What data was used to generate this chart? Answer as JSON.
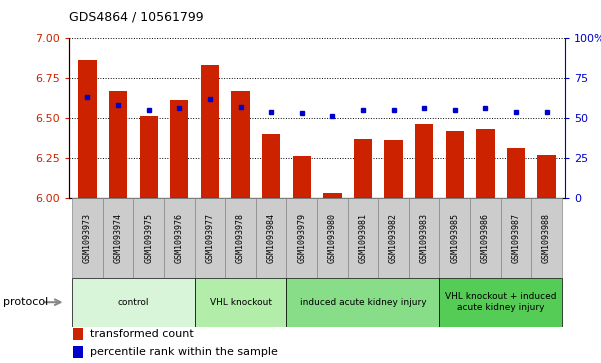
{
  "title": "GDS4864 / 10561799",
  "samples": [
    "GSM1093973",
    "GSM1093974",
    "GSM1093975",
    "GSM1093976",
    "GSM1093977",
    "GSM1093978",
    "GSM1093984",
    "GSM1093979",
    "GSM1093980",
    "GSM1093981",
    "GSM1093982",
    "GSM1093983",
    "GSM1093985",
    "GSM1093986",
    "GSM1093987",
    "GSM1093988"
  ],
  "transformed_count": [
    6.86,
    6.67,
    6.51,
    6.61,
    6.83,
    6.67,
    6.4,
    6.26,
    6.03,
    6.37,
    6.36,
    6.46,
    6.42,
    6.43,
    6.31,
    6.27
  ],
  "percentile_rank": [
    63,
    58,
    55,
    56,
    62,
    57,
    54,
    53,
    51,
    55,
    55,
    56,
    55,
    56,
    54,
    54
  ],
  "ylim_left": [
    6.0,
    7.0
  ],
  "ylim_right": [
    0,
    100
  ],
  "yticks_left": [
    6.0,
    6.25,
    6.5,
    6.75,
    7.0
  ],
  "yticks_right": [
    0,
    25,
    50,
    75,
    100
  ],
  "bar_color": "#cc2200",
  "dot_color": "#0000cc",
  "groups": [
    {
      "label": "control",
      "indices": [
        0,
        1,
        2,
        3
      ],
      "color": "#d9f5d9"
    },
    {
      "label": "VHL knockout",
      "indices": [
        4,
        5,
        6
      ],
      "color": "#b3edaa"
    },
    {
      "label": "induced acute kidney injury",
      "indices": [
        7,
        8,
        9,
        10,
        11
      ],
      "color": "#88dd88"
    },
    {
      "label": "VHL knockout + induced\nacute kidney injury",
      "indices": [
        12,
        13,
        14,
        15
      ],
      "color": "#55cc55"
    }
  ],
  "protocol_label": "protocol",
  "legend_items": [
    {
      "label": "transformed count",
      "color": "#cc2200"
    },
    {
      "label": "percentile rank within the sample",
      "color": "#0000cc"
    }
  ],
  "bg_color": "#ffffff",
  "plot_bg": "#ffffff",
  "axis_color_left": "#cc2200",
  "axis_color_right": "#0000cc",
  "sample_box_color": "#cccccc",
  "sample_box_edge": "#888888"
}
